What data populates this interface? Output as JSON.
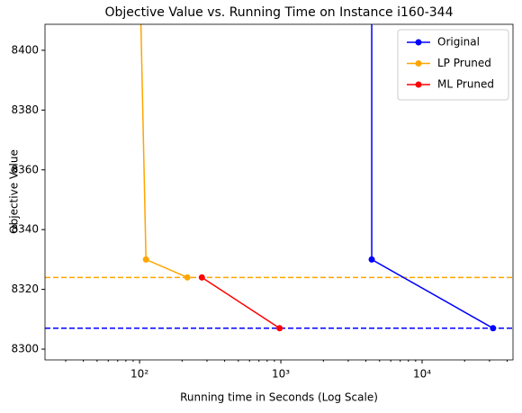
{
  "chart_data": {
    "type": "line",
    "title": "Objective Value vs. Running Time on Instance i160-344",
    "x_label": "Running time in Seconds (Log Scale)",
    "y_label": "Objective Value",
    "xscale": "log",
    "xlim": [
      21.4,
      44000
    ],
    "ylim": [
      8296.4,
      8408.7
    ],
    "xticks": [
      {
        "value": 100,
        "label": "10²"
      },
      {
        "value": 1000,
        "label": "10³"
      },
      {
        "value": 10000,
        "label": "10⁴"
      }
    ],
    "xminorticks": [
      30,
      40,
      50,
      60,
      70,
      80,
      90,
      200,
      300,
      400,
      500,
      600,
      700,
      800,
      900,
      2000,
      3000,
      4000,
      5000,
      6000,
      7000,
      8000,
      9000,
      20000,
      30000,
      40000
    ],
    "yticks": [
      8300,
      8320,
      8340,
      8360,
      8380,
      8400
    ],
    "legend": "upper right",
    "series": [
      {
        "name": "Original",
        "color": "#0000ff",
        "x": [
          4400,
          4400,
          31800
        ],
        "values": [
          8500,
          8330,
          8307
        ]
      },
      {
        "name": "LP Pruned",
        "color": "#ffa500",
        "x": [
          101,
          111,
          218
        ],
        "values": [
          8420,
          8330,
          8324
        ]
      },
      {
        "name": "ML Pruned",
        "color": "#ff0000",
        "x": [
          276,
          980
        ],
        "values": [
          8324,
          8307
        ]
      }
    ],
    "hlines": [
      {
        "value": 8324,
        "color": "#ffa500"
      },
      {
        "value": 8307,
        "color": "#0000ff"
      }
    ]
  }
}
